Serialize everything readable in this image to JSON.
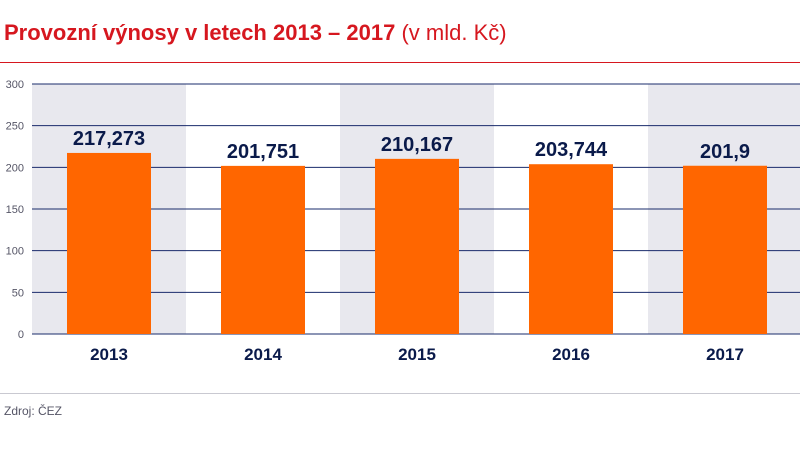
{
  "header": {
    "title": "Provozní výnosy v letech 2013 – 2017",
    "unit": "(v mld. Kč)"
  },
  "footer": {
    "source": "Zdroj: ČEZ"
  },
  "colors": {
    "bar": "#ff6600",
    "band": "#e8e8ee",
    "grid": "#1a2b6b",
    "title": "#d6171f",
    "label": "#0a1a4a"
  },
  "chart_data": {
    "type": "bar",
    "title": "Provozní výnosy v letech 2013 – 2017 (v mld. Kč)",
    "categories": [
      "2013",
      "2014",
      "2015",
      "2016",
      "2017"
    ],
    "values": [
      217.273,
      201.751,
      210.167,
      203.744,
      201.9
    ],
    "data_labels": [
      "217,273",
      "201,751",
      "210,167",
      "203,744",
      "201,9"
    ],
    "yticks": [
      "0",
      "50",
      "100",
      "150",
      "200",
      "250",
      "300"
    ],
    "ylim": [
      0,
      300
    ],
    "xlabel": "",
    "ylabel": "",
    "grid": true,
    "legend": "none"
  }
}
